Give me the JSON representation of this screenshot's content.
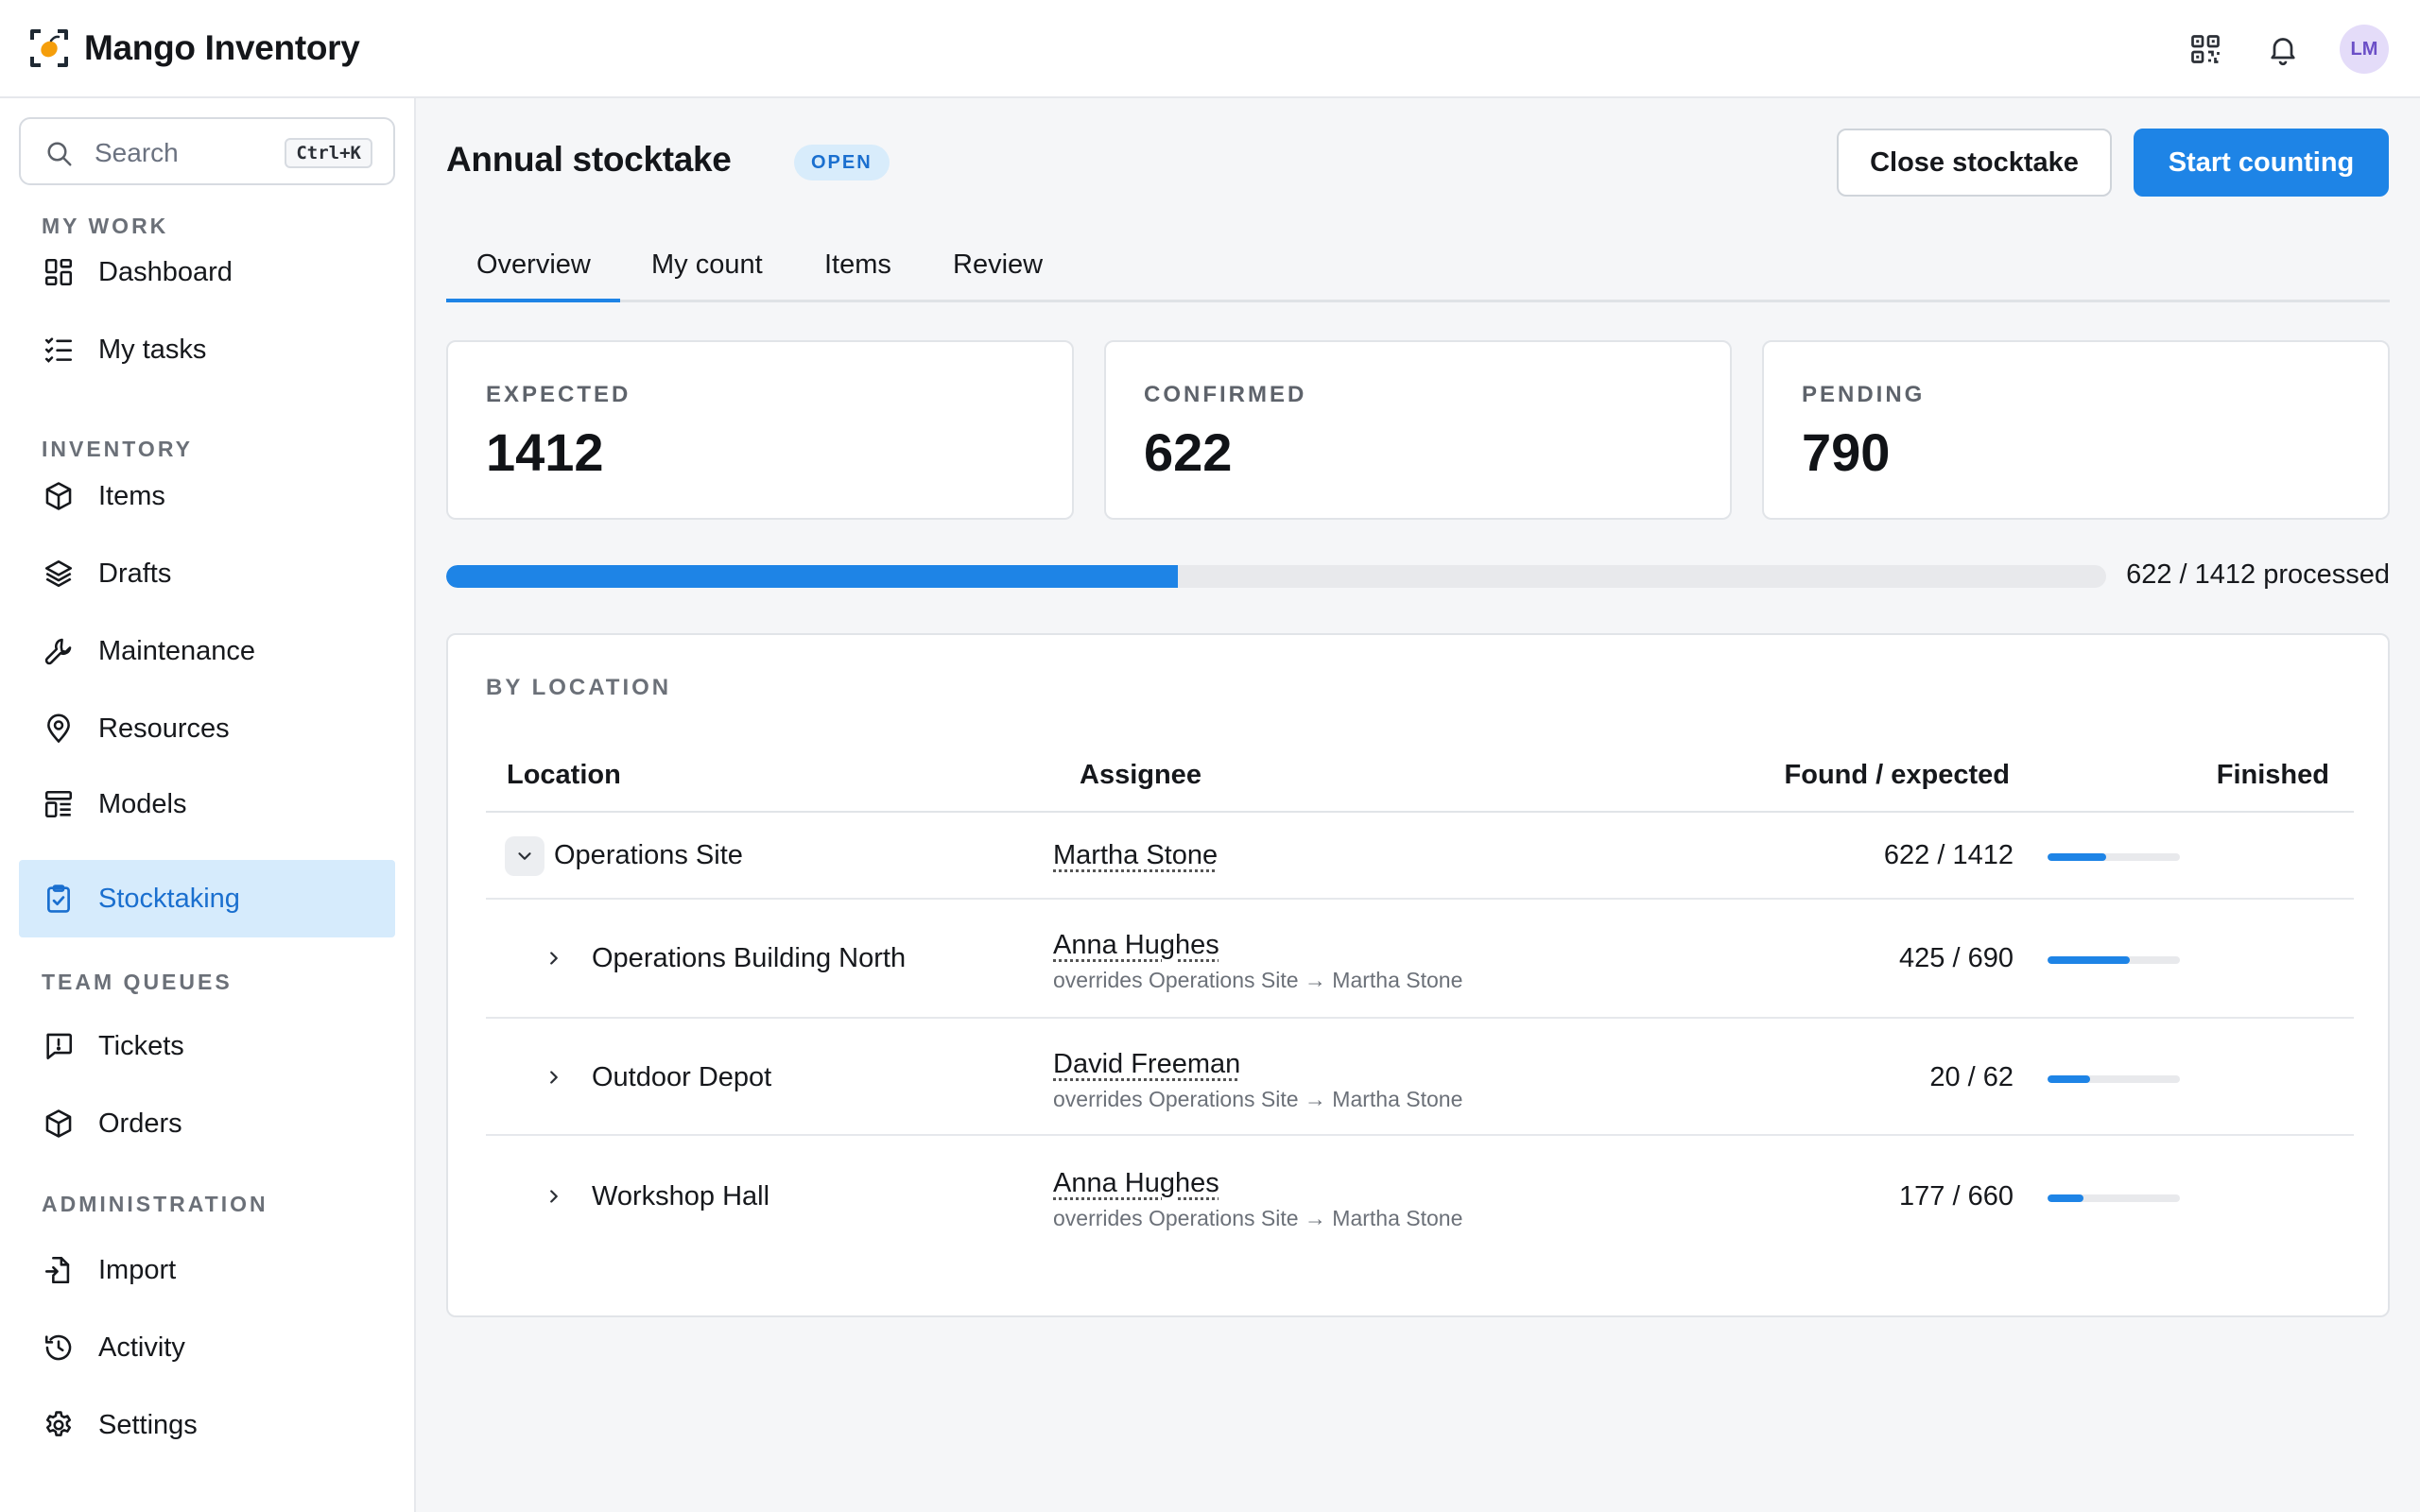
{
  "app": {
    "name": "Mango Inventory",
    "avatar_initials": "LM"
  },
  "topbar": {
    "icons": [
      "qr-code-icon",
      "bell-icon"
    ]
  },
  "search": {
    "placeholder": "Search",
    "shortcut": "Ctrl+K"
  },
  "sidebar": {
    "sections": [
      {
        "label": "MY WORK",
        "items": [
          {
            "label": "Dashboard",
            "icon": "dashboard-icon"
          },
          {
            "label": "My tasks",
            "icon": "tasks-icon"
          }
        ]
      },
      {
        "label": "INVENTORY",
        "items": [
          {
            "label": "Items",
            "icon": "box-icon"
          },
          {
            "label": "Drafts",
            "icon": "layers-icon"
          },
          {
            "label": "Maintenance",
            "icon": "wrench-icon"
          },
          {
            "label": "Resources",
            "icon": "location-pin-icon"
          },
          {
            "label": "Models",
            "icon": "models-icon"
          },
          {
            "label": "Stocktaking",
            "icon": "clipboard-check-icon",
            "active": true
          }
        ]
      },
      {
        "label": "TEAM QUEUES",
        "items": [
          {
            "label": "Tickets",
            "icon": "ticket-icon"
          },
          {
            "label": "Orders",
            "icon": "box-icon"
          }
        ]
      },
      {
        "label": "ADMINISTRATION",
        "items": [
          {
            "label": "Import",
            "icon": "import-icon"
          },
          {
            "label": "Activity",
            "icon": "history-icon"
          },
          {
            "label": "Settings",
            "icon": "gear-icon"
          }
        ]
      }
    ]
  },
  "page": {
    "title": "Annual stocktake",
    "status": "OPEN",
    "close_button": "Close stocktake",
    "start_button": "Start counting",
    "tabs": [
      "Overview",
      "My count",
      "Items",
      "Review"
    ],
    "active_tab": "Overview"
  },
  "stats": [
    {
      "label": "EXPECTED",
      "value": "1412"
    },
    {
      "label": "CONFIRMED",
      "value": "622"
    },
    {
      "label": "PENDING",
      "value": "790"
    }
  ],
  "progress": {
    "processed": 622,
    "total": 1412,
    "text": "622 / 1412 processed"
  },
  "by_location": {
    "label": "BY LOCATION",
    "columns": {
      "location": "Location",
      "assignee": "Assignee",
      "found_expected": "Found / expected",
      "finished": "Finished"
    },
    "rows": [
      {
        "location": "Operations Site",
        "assignee": "Martha Stone",
        "override": "",
        "found_expected": "622 / 1412",
        "finished_fraction": 0.44,
        "expanded": true,
        "level": 0
      },
      {
        "location": "Operations Building North",
        "assignee": "Anna Hughes",
        "override": "overrides Operations Site → Martha Stone",
        "found_expected": "425 / 690",
        "finished_fraction": 0.62,
        "expanded": false,
        "level": 1
      },
      {
        "location": "Outdoor Depot",
        "assignee": "David Freeman",
        "override": "overrides Operations Site → Martha Stone",
        "found_expected": "20 / 62",
        "finished_fraction": 0.32,
        "expanded": false,
        "level": 1
      },
      {
        "location": "Workshop Hall",
        "assignee": "Anna Hughes",
        "override": "overrides Operations Site → Martha Stone",
        "found_expected": "177 / 660",
        "finished_fraction": 0.27,
        "expanded": false,
        "level": 1
      }
    ]
  },
  "colors": {
    "accent": "#1e84e6",
    "active_nav_bg": "#d6ebfc",
    "badge_bg": "#d8ecfb",
    "avatar_bg": "#e4dcf9"
  }
}
